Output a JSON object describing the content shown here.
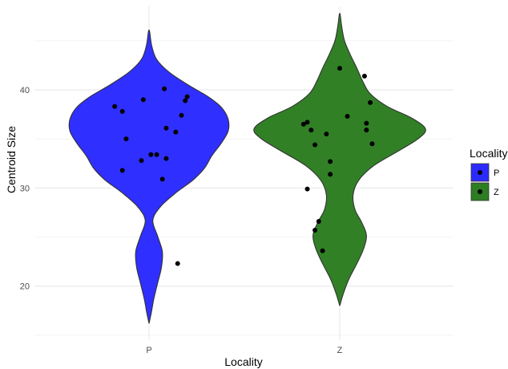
{
  "chart_data": {
    "type": "violin",
    "xlabel": "Locality",
    "ylabel": "Centroid Size",
    "categories": [
      "P",
      "Z"
    ],
    "ylim": [
      14.5,
      48.5
    ],
    "yticks": [
      20,
      30,
      40
    ],
    "grid": true,
    "legend": {
      "title": "Locality",
      "position": "right",
      "entries": [
        {
          "label": "P",
          "color": "#2b2bff"
        },
        {
          "label": "Z",
          "color": "#2d7d22"
        }
      ]
    },
    "violins": [
      {
        "category": "P",
        "color": "#2b2bff",
        "min": 16.2,
        "max": 46.1,
        "profile": [
          {
            "y": 16.2,
            "hw": 0.0
          },
          {
            "y": 17.3,
            "hw": 0.012
          },
          {
            "y": 18.7,
            "hw": 0.025
          },
          {
            "y": 20.3,
            "hw": 0.045
          },
          {
            "y": 21.9,
            "hw": 0.065
          },
          {
            "y": 23.5,
            "hw": 0.07
          },
          {
            "y": 25.1,
            "hw": 0.045
          },
          {
            "y": 26.7,
            "hw": 0.02
          },
          {
            "y": 28.1,
            "hw": 0.06
          },
          {
            "y": 29.5,
            "hw": 0.14
          },
          {
            "y": 30.8,
            "hw": 0.23
          },
          {
            "y": 32.0,
            "hw": 0.29
          },
          {
            "y": 33.3,
            "hw": 0.33
          },
          {
            "y": 34.6,
            "hw": 0.38
          },
          {
            "y": 35.8,
            "hw": 0.415
          },
          {
            "y": 37.0,
            "hw": 0.415
          },
          {
            "y": 38.2,
            "hw": 0.38
          },
          {
            "y": 39.3,
            "hw": 0.31
          },
          {
            "y": 40.5,
            "hw": 0.205
          },
          {
            "y": 41.8,
            "hw": 0.105
          },
          {
            "y": 43.1,
            "hw": 0.04
          },
          {
            "y": 44.5,
            "hw": 0.014
          },
          {
            "y": 46.1,
            "hw": 0.0
          }
        ],
        "points": [
          {
            "x": -0.18,
            "y": 38.3
          },
          {
            "x": -0.14,
            "y": 37.8
          },
          {
            "x": -0.12,
            "y": 35.0
          },
          {
            "x": -0.14,
            "y": 31.8
          },
          {
            "x": -0.03,
            "y": 39.0
          },
          {
            "x": -0.04,
            "y": 32.8
          },
          {
            "x": 0.01,
            "y": 33.4
          },
          {
            "x": 0.04,
            "y": 33.4
          },
          {
            "x": 0.07,
            "y": 30.9
          },
          {
            "x": 0.09,
            "y": 33.0
          },
          {
            "x": 0.09,
            "y": 36.1
          },
          {
            "x": 0.08,
            "y": 40.1
          },
          {
            "x": 0.14,
            "y": 35.7
          },
          {
            "x": 0.17,
            "y": 37.4
          },
          {
            "x": 0.19,
            "y": 38.9
          },
          {
            "x": 0.2,
            "y": 39.3
          },
          {
            "x": 0.15,
            "y": 22.3
          }
        ]
      },
      {
        "category": "Z",
        "color": "#2d7d22",
        "min": 18.0,
        "max": 47.8,
        "profile": [
          {
            "y": 18.0,
            "hw": 0.0
          },
          {
            "y": 19.3,
            "hw": 0.02
          },
          {
            "y": 20.8,
            "hw": 0.05
          },
          {
            "y": 22.3,
            "hw": 0.09
          },
          {
            "y": 23.8,
            "hw": 0.125
          },
          {
            "y": 25.2,
            "hw": 0.14
          },
          {
            "y": 26.5,
            "hw": 0.115
          },
          {
            "y": 27.8,
            "hw": 0.08
          },
          {
            "y": 29.3,
            "hw": 0.07
          },
          {
            "y": 30.8,
            "hw": 0.1
          },
          {
            "y": 32.3,
            "hw": 0.18
          },
          {
            "y": 33.8,
            "hw": 0.31
          },
          {
            "y": 35.0,
            "hw": 0.41
          },
          {
            "y": 36.0,
            "hw": 0.45
          },
          {
            "y": 37.1,
            "hw": 0.38
          },
          {
            "y": 38.3,
            "hw": 0.25
          },
          {
            "y": 39.6,
            "hw": 0.16
          },
          {
            "y": 40.9,
            "hw": 0.12
          },
          {
            "y": 42.2,
            "hw": 0.09
          },
          {
            "y": 43.6,
            "hw": 0.055
          },
          {
            "y": 45.0,
            "hw": 0.025
          },
          {
            "y": 46.5,
            "hw": 0.01
          },
          {
            "y": 47.8,
            "hw": 0.0
          }
        ],
        "points": [
          {
            "x": -0.19,
            "y": 36.5
          },
          {
            "x": -0.17,
            "y": 36.7
          },
          {
            "x": -0.15,
            "y": 35.9
          },
          {
            "x": -0.13,
            "y": 34.4
          },
          {
            "x": -0.17,
            "y": 29.9
          },
          {
            "x": -0.07,
            "y": 35.5
          },
          {
            "x": -0.05,
            "y": 32.7
          },
          {
            "x": -0.05,
            "y": 31.4
          },
          {
            "x": 0.0,
            "y": 42.2
          },
          {
            "x": 0.04,
            "y": 37.3
          },
          {
            "x": -0.11,
            "y": 26.6
          },
          {
            "x": -0.13,
            "y": 25.7
          },
          {
            "x": -0.09,
            "y": 23.6
          },
          {
            "x": 0.13,
            "y": 41.4
          },
          {
            "x": 0.16,
            "y": 38.7
          },
          {
            "x": 0.14,
            "y": 36.6
          },
          {
            "x": 0.14,
            "y": 35.9
          },
          {
            "x": 0.17,
            "y": 34.5
          }
        ]
      }
    ]
  }
}
